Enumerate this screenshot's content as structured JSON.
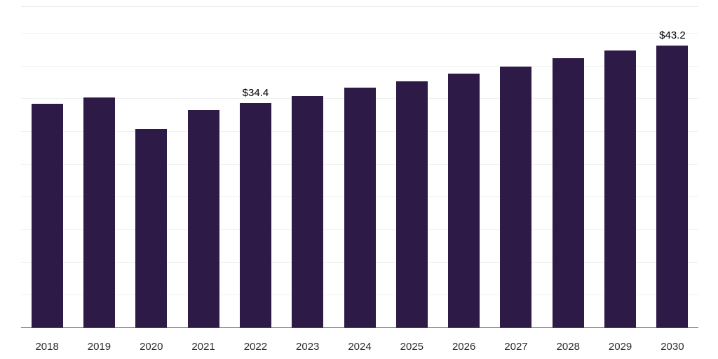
{
  "chart_data": {
    "type": "bar",
    "title": "",
    "xlabel": "",
    "ylabel": "",
    "categories": [
      "2018",
      "2019",
      "2020",
      "2021",
      "2022",
      "2023",
      "2024",
      "2025",
      "2026",
      "2027",
      "2028",
      "2029",
      "2030"
    ],
    "values": [
      34.3,
      35.3,
      30.4,
      33.3,
      34.4,
      35.5,
      36.7,
      37.7,
      38.9,
      40.0,
      41.3,
      42.4,
      43.2
    ],
    "data_labels": [
      {
        "category": "2022",
        "text": "$34.4"
      },
      {
        "category": "2030",
        "text": "$43.2"
      }
    ],
    "ylim": [
      0,
      45
    ],
    "grid_step": 5,
    "grid_on": true,
    "legend": "none",
    "bar_color": "#2e1a47",
    "axis_line_color": "#4d4d4d",
    "gridline_color": "#f1f1f1",
    "label_color": "#2b2b2b"
  }
}
